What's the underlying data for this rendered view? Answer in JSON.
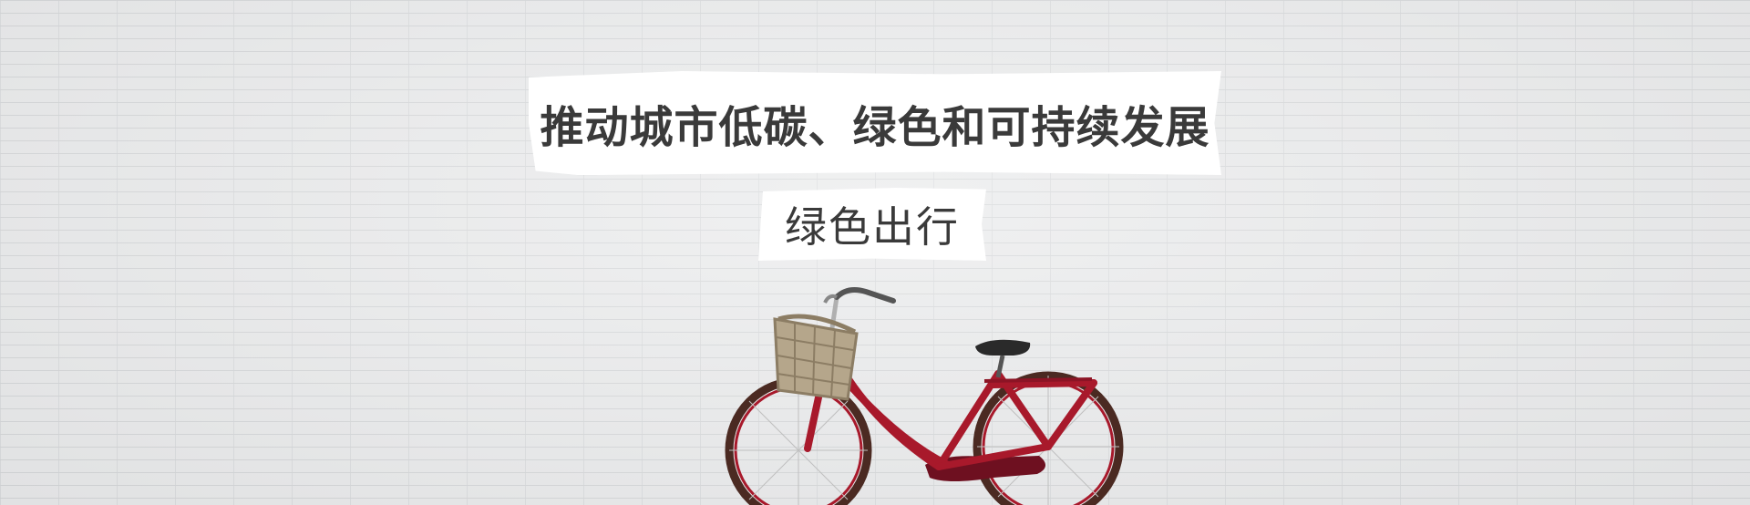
{
  "headline": "推动城市低碳、绿色和可持续发展",
  "subheadline": "绿色出行",
  "bicycle": {
    "frame_color": "#a8192b",
    "basket_color": "#b5a68b"
  }
}
